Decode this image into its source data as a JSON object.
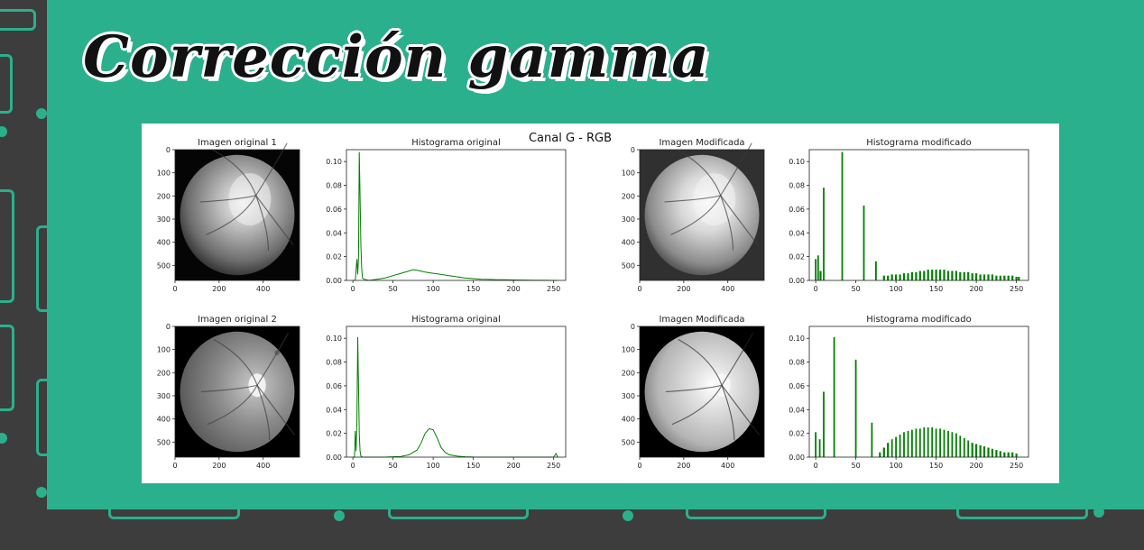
{
  "slide": {
    "title": "Corrección gamma",
    "figure_title": "Canal G - RGB",
    "colors": {
      "background": "#2bb08d",
      "frame": "#3d3d3d",
      "histogram": "#008000"
    }
  },
  "chart_data": [
    {
      "type": "image",
      "title": "Imagen original 1",
      "xticks": [
        0,
        200,
        400
      ],
      "yticks": [
        0,
        100,
        200,
        300,
        400,
        500
      ],
      "image": "retina-1-original",
      "grid": false
    },
    {
      "type": "line",
      "title": "Histograma original",
      "xlim": [
        0,
        255
      ],
      "ylim": [
        0,
        0.11
      ],
      "xticks": [
        0,
        50,
        100,
        150,
        200,
        250
      ],
      "yticks": [
        0.0,
        0.02,
        0.04,
        0.06,
        0.08,
        0.1
      ],
      "series": [
        {
          "color": "#008000",
          "x": [
            0,
            3,
            5,
            6,
            7,
            8,
            9,
            10,
            11,
            12,
            14,
            20,
            30,
            40,
            50,
            60,
            70,
            75,
            80,
            90,
            100,
            110,
            120,
            130,
            140,
            150,
            160,
            170,
            180,
            190,
            200,
            210,
            220,
            230,
            240,
            250,
            255
          ],
          "y": [
            0,
            0,
            0.018,
            0.005,
            0.02,
            0.108,
            0.07,
            0.03,
            0.01,
            0.002,
            0.001,
            0,
            0.001,
            0.002,
            0.004,
            0.006,
            0.008,
            0.009,
            0.0085,
            0.007,
            0.006,
            0.005,
            0.004,
            0.003,
            0.002,
            0.0015,
            0.001,
            0.0008,
            0.0006,
            0.0005,
            0.0004,
            0.0003,
            0.0002,
            0.0001,
            0.0001,
            0,
            0
          ]
        }
      ]
    },
    {
      "type": "image",
      "title": "Imagen Modificada",
      "xticks": [
        0,
        200,
        400
      ],
      "yticks": [
        0,
        100,
        200,
        300,
        400,
        500
      ],
      "image": "retina-1-modified",
      "grid": false
    },
    {
      "type": "bar",
      "title": "Histograma modificado",
      "xlim": [
        0,
        255
      ],
      "ylim": [
        0,
        0.11
      ],
      "xticks": [
        0,
        50,
        100,
        150,
        200,
        250
      ],
      "yticks": [
        0.0,
        0.02,
        0.04,
        0.06,
        0.08,
        0.1
      ],
      "series": [
        {
          "color": "#008000",
          "x": [
            0,
            3,
            6,
            10,
            33,
            60,
            75,
            85,
            90,
            95,
            100,
            105,
            110,
            115,
            120,
            125,
            130,
            135,
            140,
            145,
            150,
            155,
            160,
            165,
            170,
            175,
            180,
            185,
            190,
            195,
            200,
            205,
            210,
            215,
            220,
            225,
            230,
            235,
            240,
            245,
            250,
            253
          ],
          "y": [
            0.018,
            0.021,
            0.008,
            0.078,
            0.108,
            0.063,
            0.016,
            0.004,
            0.004,
            0.005,
            0.005,
            0.005,
            0.006,
            0.006,
            0.007,
            0.007,
            0.008,
            0.008,
            0.009,
            0.009,
            0.009,
            0.009,
            0.009,
            0.008,
            0.008,
            0.008,
            0.007,
            0.007,
            0.007,
            0.006,
            0.006,
            0.005,
            0.005,
            0.005,
            0.005,
            0.004,
            0.004,
            0.004,
            0.004,
            0.004,
            0.003,
            0.003
          ]
        }
      ]
    },
    {
      "type": "image",
      "title": "Imagen original 2",
      "xticks": [
        0,
        200,
        400
      ],
      "yticks": [
        0,
        100,
        200,
        300,
        400,
        500
      ],
      "image": "retina-2-original",
      "grid": false
    },
    {
      "type": "line",
      "title": "Histograma original",
      "xlim": [
        0,
        255
      ],
      "ylim": [
        0,
        0.11
      ],
      "xticks": [
        0,
        50,
        100,
        150,
        200,
        250
      ],
      "yticks": [
        0.0,
        0.02,
        0.04,
        0.06,
        0.08,
        0.1
      ],
      "series": [
        {
          "color": "#008000",
          "x": [
            0,
            2,
            3,
            4,
            5,
            6,
            7,
            8,
            9,
            10,
            12,
            20,
            40,
            60,
            70,
            80,
            85,
            90,
            95,
            100,
            105,
            110,
            115,
            120,
            130,
            140,
            150,
            200,
            250,
            253,
            255
          ],
          "y": [
            0,
            0,
            0.022,
            0.005,
            0.03,
            0.101,
            0.06,
            0.02,
            0.005,
            0.001,
            0,
            0,
            0,
            0.0005,
            0.002,
            0.006,
            0.012,
            0.02,
            0.024,
            0.023,
            0.016,
            0.008,
            0.004,
            0.002,
            0.0008,
            0.0003,
            0.0001,
            0,
            0,
            0.003,
            0
          ]
        }
      ]
    },
    {
      "type": "image",
      "title": "Imagen Modificada",
      "xticks": [
        0,
        200,
        400
      ],
      "yticks": [
        0,
        100,
        200,
        300,
        400,
        500
      ],
      "image": "retina-2-modified",
      "grid": false
    },
    {
      "type": "bar",
      "title": "Histograma modificado",
      "xlim": [
        0,
        255
      ],
      "ylim": [
        0,
        0.11
      ],
      "xticks": [
        0,
        50,
        100,
        150,
        200,
        250
      ],
      "yticks": [
        0.0,
        0.02,
        0.04,
        0.06,
        0.08,
        0.1
      ],
      "series": [
        {
          "color": "#008000",
          "x": [
            0,
            5,
            10,
            23,
            50,
            70,
            80,
            85,
            90,
            95,
            100,
            105,
            110,
            115,
            120,
            125,
            130,
            135,
            140,
            145,
            150,
            155,
            160,
            165,
            170,
            175,
            180,
            185,
            190,
            195,
            200,
            205,
            210,
            215,
            220,
            225,
            230,
            235,
            240,
            245,
            250
          ],
          "y": [
            0.021,
            0.015,
            0.055,
            0.101,
            0.082,
            0.029,
            0.004,
            0.008,
            0.012,
            0.015,
            0.017,
            0.019,
            0.021,
            0.022,
            0.023,
            0.024,
            0.024,
            0.025,
            0.025,
            0.025,
            0.024,
            0.024,
            0.023,
            0.022,
            0.021,
            0.02,
            0.018,
            0.016,
            0.014,
            0.012,
            0.011,
            0.01,
            0.009,
            0.008,
            0.007,
            0.006,
            0.005,
            0.004,
            0.004,
            0.004,
            0.003
          ]
        }
      ]
    }
  ]
}
